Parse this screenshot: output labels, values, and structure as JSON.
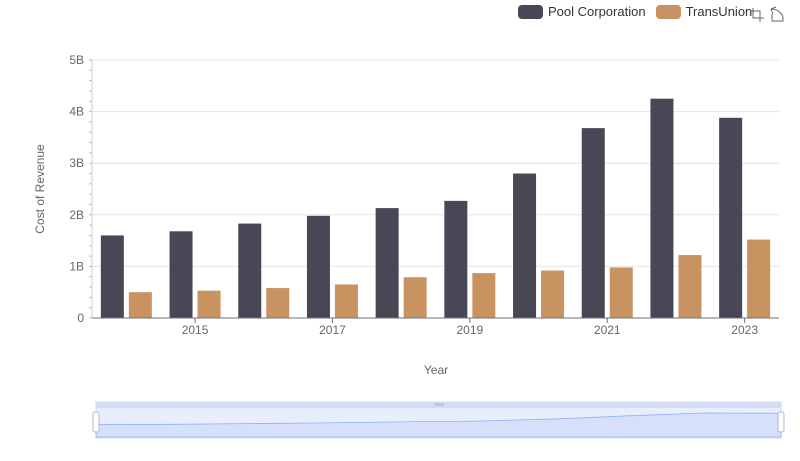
{
  "legend": {
    "items": [
      {
        "label": "Pool Corporation",
        "color": "#484755"
      },
      {
        "label": "TransUnion",
        "color": "#c89261"
      }
    ]
  },
  "toolbox": {
    "zoom_icon": "zoom-icon",
    "restore_icon": "restore-icon"
  },
  "chart_data": {
    "type": "bar",
    "categories": [
      "2014",
      "2015",
      "2016",
      "2017",
      "2018",
      "2019",
      "2020",
      "2021",
      "2022",
      "2023"
    ],
    "x_tick_labels": [
      "2015",
      "2017",
      "2019",
      "2021",
      "2023"
    ],
    "series": [
      {
        "name": "Pool Corporation",
        "color": "#484755",
        "values": [
          1.6,
          1.68,
          1.83,
          1.98,
          2.13,
          2.27,
          2.8,
          3.68,
          4.25,
          3.88
        ]
      },
      {
        "name": "TransUnion",
        "color": "#c89261",
        "values": [
          0.5,
          0.53,
          0.58,
          0.65,
          0.79,
          0.87,
          0.92,
          0.98,
          1.22,
          1.52
        ]
      }
    ],
    "xlabel": "Year",
    "ylabel": "Cost of Revenue",
    "ylim": [
      0,
      5
    ],
    "y_tick_labels": [
      "0",
      "1B",
      "2B",
      "3B",
      "4B",
      "5B"
    ],
    "grid": true,
    "legend_position": "top-right",
    "data_zoom": true
  }
}
